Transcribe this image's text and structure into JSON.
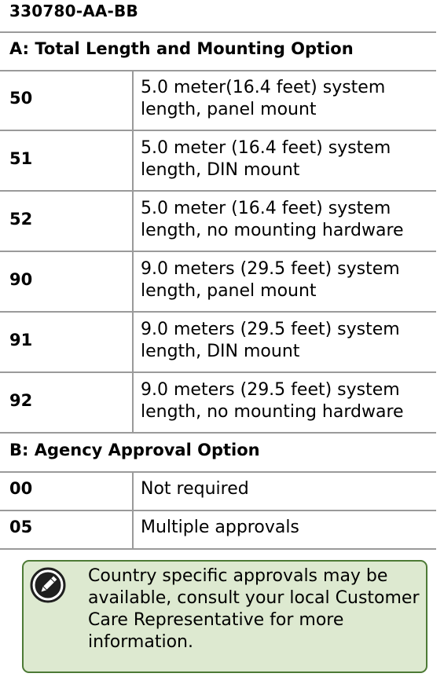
{
  "part_number": "330780-AA-BB",
  "section_a": {
    "title": "A: Total Length and Mounting Option",
    "rows": [
      {
        "code": "50",
        "description": "5.0 meter(16.4 feet) system length, panel mount"
      },
      {
        "code": "51",
        "description": "5.0 meter (16.4 feet) system length, DIN mount"
      },
      {
        "code": "52",
        "description": "5.0 meter (16.4 feet) system length, no mounting hardware"
      },
      {
        "code": "90",
        "description": "9.0 meters (29.5 feet) system length, panel mount"
      },
      {
        "code": "91",
        "description": "9.0 meters (29.5 feet) system length, DIN mount"
      },
      {
        "code": "92",
        "description": "9.0 meters (29.5 feet) system length, no mounting hardware"
      }
    ]
  },
  "section_b": {
    "title": "B: Agency Approval Option",
    "rows": [
      {
        "code": "00",
        "description": "Not required"
      },
      {
        "code": "05",
        "description": "Multiple approvals"
      }
    ]
  },
  "note": {
    "icon": "pencil-note-icon",
    "text": "Country specific approvals may be available, consult your local Customer Care Representative for more information.",
    "background_color": "#dde9d0",
    "border_color": "#4d7a35"
  }
}
